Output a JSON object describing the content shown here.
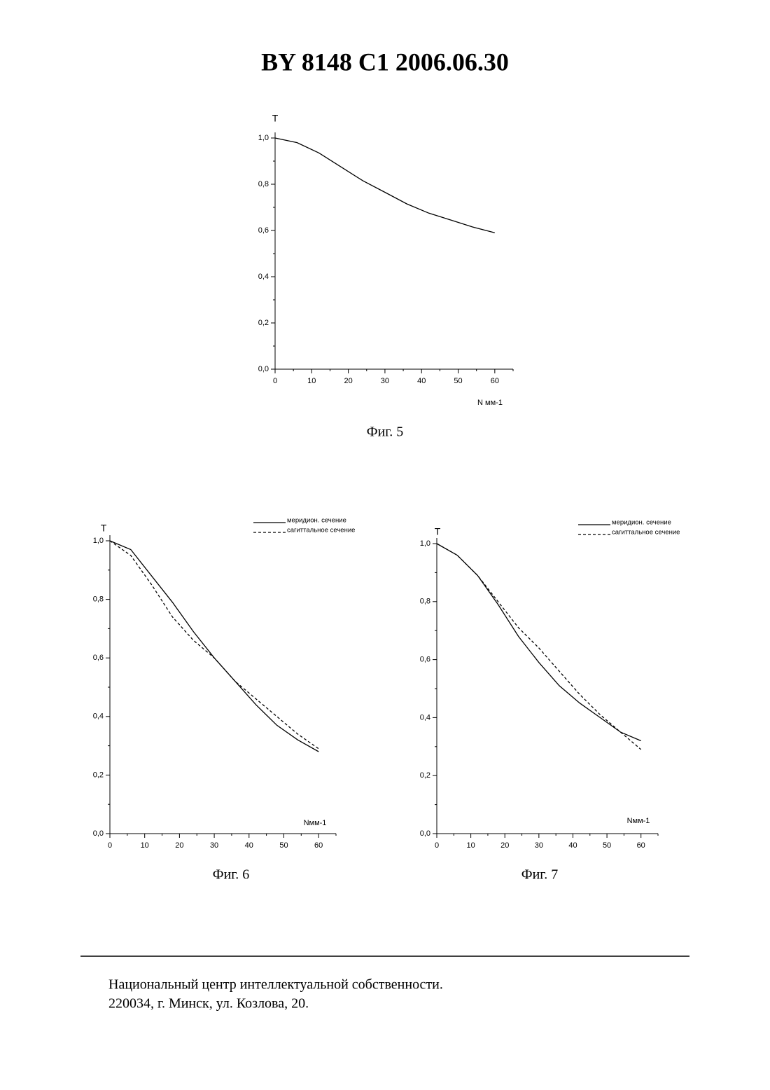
{
  "header": {
    "title": "BY  8148  C1  2006.06.30"
  },
  "chart_data": [
    {
      "type": "line",
      "y_label": "T",
      "x_label": "N мм-1",
      "caption": "Фиг. 5",
      "x": [
        0,
        6,
        12,
        18,
        24,
        30,
        36,
        42,
        48,
        54,
        60
      ],
      "values": [
        1.0,
        0.98,
        0.935,
        0.875,
        0.815,
        0.765,
        0.715,
        0.675,
        0.645,
        0.615,
        0.59
      ],
      "color": "#000",
      "xlim": [
        0,
        65
      ],
      "ylim": [
        0,
        1.0
      ],
      "xticks": [
        0,
        10,
        20,
        30,
        40,
        50,
        60
      ],
      "yticks": [
        {
          "value": 0,
          "label": "0,0"
        },
        {
          "value": 0.2,
          "label": "0,2"
        },
        {
          "value": 0.4,
          "label": "0,4"
        },
        {
          "value": 0.6,
          "label": "0,6"
        },
        {
          "value": 0.8,
          "label": "0,8"
        },
        {
          "value": 1.0,
          "label": "1,0"
        }
      ]
    },
    {
      "type": "line",
      "y_label": "T",
      "x_label": "Nмм-1",
      "caption": "Фиг. 6",
      "x": [
        0,
        6,
        12,
        18,
        24,
        30,
        36,
        42,
        48,
        54,
        60
      ],
      "series": [
        {
          "name": "меридион. сечение",
          "color": "#000",
          "style": "solid",
          "values": [
            1.0,
            0.97,
            0.88,
            0.79,
            0.69,
            0.6,
            0.52,
            0.44,
            0.37,
            0.32,
            0.28
          ]
        },
        {
          "name": "сагиттальное сечение",
          "color": "#000",
          "style": "dashed",
          "values": [
            1.0,
            0.95,
            0.85,
            0.74,
            0.66,
            0.6,
            0.52,
            0.46,
            0.4,
            0.34,
            0.29
          ]
        }
      ],
      "xlim": [
        0,
        65
      ],
      "ylim": [
        0,
        1.0
      ],
      "xticks": [
        0,
        10,
        20,
        30,
        40,
        50,
        60
      ],
      "yticks": [
        {
          "value": 0,
          "label": "0,0"
        },
        {
          "value": 0.2,
          "label": "0,2"
        },
        {
          "value": 0.4,
          "label": "0,4"
        },
        {
          "value": 0.6,
          "label": "0,6"
        },
        {
          "value": 0.8,
          "label": "0,8"
        },
        {
          "value": 1.0,
          "label": "1,0"
        }
      ]
    },
    {
      "type": "line",
      "y_label": "T",
      "x_label": "Nмм-1",
      "caption": "Фиг. 7",
      "x": [
        0,
        6,
        12,
        18,
        24,
        30,
        36,
        42,
        48,
        54,
        60
      ],
      "series": [
        {
          "name": "меридион. сечение",
          "color": "#000",
          "style": "solid",
          "values": [
            1.0,
            0.96,
            0.89,
            0.79,
            0.68,
            0.59,
            0.51,
            0.45,
            0.4,
            0.35,
            0.32
          ]
        },
        {
          "name": "сагиттальное сечение",
          "color": "#000",
          "style": "dashed",
          "values": [
            1.0,
            0.96,
            0.89,
            0.8,
            0.71,
            0.64,
            0.56,
            0.48,
            0.41,
            0.35,
            0.29
          ]
        }
      ],
      "xlim": [
        0,
        65
      ],
      "ylim": [
        0,
        1.0
      ],
      "xticks": [
        0,
        10,
        20,
        30,
        40,
        50,
        60
      ],
      "yticks": [
        {
          "value": 0,
          "label": "0,0"
        },
        {
          "value": 0.2,
          "label": "0,2"
        },
        {
          "value": 0.4,
          "label": "0,4"
        },
        {
          "value": 0.6,
          "label": "0,6"
        },
        {
          "value": 0.8,
          "label": "0,8"
        },
        {
          "value": 1.0,
          "label": "1,0"
        }
      ]
    }
  ],
  "footer": {
    "lines": [
      "Национальный центр интеллектуальной собственности.",
      "220034, г. Минск, ул. Козлова, 20."
    ]
  }
}
